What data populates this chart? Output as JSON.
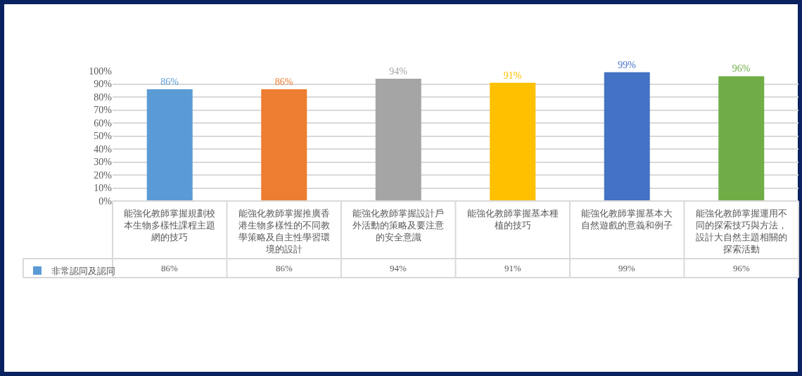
{
  "chart_data": {
    "type": "bar",
    "categories": [
      "能強化教師掌握規劃校本生物多樣性課程主題網的技巧",
      "能強化教師掌握推廣香港生物多樣性的不同教學策略及自主性學習環境的設計",
      "能強化教師掌握設計戶外活動的策略及要注意的安全意識",
      "能強化教師掌握基本種植的技巧",
      "能強化教師掌握基本大自然遊戲的意義和例子",
      "能強化教師掌握運用不同的探索技巧與方法，設計大自然主題相關的探索活動"
    ],
    "series": [
      {
        "name": "非常認同及認同",
        "colors": [
          "#5b9bd5",
          "#ed7d31",
          "#a5a5a5",
          "#ffc000",
          "#4472c4",
          "#70ad47"
        ],
        "values": [
          86,
          86,
          94,
          91,
          99,
          96
        ],
        "value_labels": [
          "86%",
          "86%",
          "94%",
          "91%",
          "99%",
          "96%"
        ]
      }
    ],
    "ylim": [
      0,
      100
    ],
    "yticks": [
      {
        "value": 0,
        "label": "0%"
      },
      {
        "value": 10,
        "label": "10%"
      },
      {
        "value": 20,
        "label": "20%"
      },
      {
        "value": 30,
        "label": "30%"
      },
      {
        "value": 40,
        "label": "40%"
      },
      {
        "value": 50,
        "label": "50%"
      },
      {
        "value": 60,
        "label": "60%"
      },
      {
        "value": 70,
        "label": "70%"
      },
      {
        "value": 80,
        "label": "80%"
      },
      {
        "value": 90,
        "label": "90%"
      },
      {
        "value": 100,
        "label": "100%"
      }
    ],
    "grid": "y",
    "legend": "bottom left"
  }
}
